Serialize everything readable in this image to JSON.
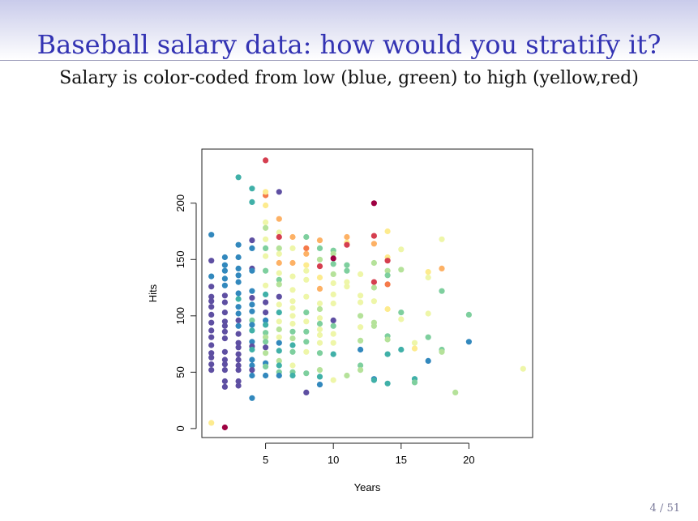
{
  "slide": {
    "title": "Baseball salary data: how would you stratify it?",
    "subtitle": "Salary is color-coded from low (blue, green) to high (yellow,red)",
    "page_number": "4 / 51"
  },
  "chart_data": {
    "type": "scatter",
    "xlabel": "Years",
    "ylabel": "Hits",
    "xlim": [
      0.3,
      24.7
    ],
    "ylim": [
      -8,
      248
    ],
    "xticks": [
      5,
      10,
      15,
      20
    ],
    "yticks": [
      0,
      50,
      100,
      150,
      200
    ],
    "grid": false,
    "colors": {
      "purple": "#5e4fa2",
      "blue": "#3288bd",
      "teal": "#40b0a8",
      "green": "#7ecf9e",
      "lightgreen": "#b5e29a",
      "lightyellow": "#eef6a8",
      "yellow": "#fdeb8e",
      "orange": "#fdb165",
      "darkorange": "#f57a4a",
      "red": "#d53e4f",
      "darkred": "#9e0142"
    },
    "points": [
      [
        1,
        172,
        "blue"
      ],
      [
        1,
        149,
        "purple"
      ],
      [
        1,
        135,
        "blue"
      ],
      [
        1,
        126,
        "purple"
      ],
      [
        1,
        117,
        "purple"
      ],
      [
        1,
        113,
        "purple"
      ],
      [
        1,
        108,
        "purple"
      ],
      [
        1,
        101,
        "purple"
      ],
      [
        1,
        94,
        "purple"
      ],
      [
        1,
        87,
        "purple"
      ],
      [
        1,
        81,
        "purple"
      ],
      [
        1,
        74,
        "purple"
      ],
      [
        1,
        67,
        "purple"
      ],
      [
        1,
        63,
        "purple"
      ],
      [
        1,
        57,
        "purple"
      ],
      [
        1,
        52,
        "purple"
      ],
      [
        1,
        5,
        "yellow"
      ],
      [
        2,
        152,
        "blue"
      ],
      [
        2,
        145,
        "blue"
      ],
      [
        2,
        140,
        "blue"
      ],
      [
        2,
        133,
        "blue"
      ],
      [
        2,
        127,
        "blue"
      ],
      [
        2,
        118,
        "purple"
      ],
      [
        2,
        112,
        "purple"
      ],
      [
        2,
        103,
        "purple"
      ],
      [
        2,
        95,
        "purple"
      ],
      [
        2,
        91,
        "purple"
      ],
      [
        2,
        86,
        "purple"
      ],
      [
        2,
        80,
        "purple"
      ],
      [
        2,
        68,
        "purple"
      ],
      [
        2,
        61,
        "purple"
      ],
      [
        2,
        57,
        "purple"
      ],
      [
        2,
        52,
        "purple"
      ],
      [
        2,
        42,
        "purple"
      ],
      [
        2,
        37,
        "purple"
      ],
      [
        2,
        1,
        "darkred"
      ],
      [
        3,
        223,
        "teal"
      ],
      [
        3,
        163,
        "blue"
      ],
      [
        3,
        152,
        "blue"
      ],
      [
        3,
        142,
        "blue"
      ],
      [
        3,
        136,
        "blue"
      ],
      [
        3,
        130,
        "blue"
      ],
      [
        3,
        120,
        "blue"
      ],
      [
        3,
        115,
        "teal"
      ],
      [
        3,
        108,
        "blue"
      ],
      [
        3,
        102,
        "blue"
      ],
      [
        3,
        96,
        "purple"
      ],
      [
        3,
        91,
        "blue"
      ],
      [
        3,
        84,
        "purple"
      ],
      [
        3,
        76,
        "purple"
      ],
      [
        3,
        72,
        "purple"
      ],
      [
        3,
        66,
        "purple"
      ],
      [
        3,
        61,
        "purple"
      ],
      [
        3,
        56,
        "purple"
      ],
      [
        3,
        52,
        "purple"
      ],
      [
        3,
        42,
        "purple"
      ],
      [
        3,
        38,
        "purple"
      ],
      [
        4,
        213,
        "teal"
      ],
      [
        4,
        201,
        "teal"
      ],
      [
        4,
        167,
        "purple"
      ],
      [
        4,
        160,
        "blue"
      ],
      [
        4,
        142,
        "purple"
      ],
      [
        4,
        140,
        "blue"
      ],
      [
        4,
        122,
        "blue"
      ],
      [
        4,
        116,
        "purple"
      ],
      [
        4,
        110,
        "blue"
      ],
      [
        4,
        104,
        "blue"
      ],
      [
        4,
        96,
        "green"
      ],
      [
        4,
        92,
        "blue"
      ],
      [
        4,
        87,
        "teal"
      ],
      [
        4,
        77,
        "blue"
      ],
      [
        4,
        73,
        "purple"
      ],
      [
        4,
        70,
        "teal"
      ],
      [
        4,
        61,
        "blue"
      ],
      [
        4,
        56,
        "blue"
      ],
      [
        4,
        52,
        "purple"
      ],
      [
        4,
        47,
        "blue"
      ],
      [
        4,
        27,
        "blue"
      ],
      [
        5,
        238,
        "red"
      ],
      [
        5,
        207,
        "darkorange"
      ],
      [
        5,
        210,
        "yellow"
      ],
      [
        5,
        198,
        "yellow"
      ],
      [
        5,
        183,
        "lightyellow"
      ],
      [
        5,
        178,
        "lightgreen"
      ],
      [
        5,
        168,
        "lightyellow"
      ],
      [
        5,
        160,
        "green"
      ],
      [
        5,
        153,
        "lightyellow"
      ],
      [
        5,
        140,
        "green"
      ],
      [
        5,
        127,
        "lightyellow"
      ],
      [
        5,
        119,
        "teal"
      ],
      [
        5,
        112,
        "purple"
      ],
      [
        5,
        103,
        "purple"
      ],
      [
        5,
        96,
        "blue"
      ],
      [
        5,
        92,
        "teal"
      ],
      [
        5,
        85,
        "green"
      ],
      [
        5,
        81,
        "lightgreen"
      ],
      [
        5,
        77,
        "green"
      ],
      [
        5,
        72,
        "purple"
      ],
      [
        5,
        67,
        "lightgreen"
      ],
      [
        5,
        58,
        "blue"
      ],
      [
        5,
        55,
        "green"
      ],
      [
        5,
        47,
        "blue"
      ],
      [
        6,
        210,
        "purple"
      ],
      [
        6,
        186,
        "orange"
      ],
      [
        6,
        174,
        "lightyellow"
      ],
      [
        6,
        170,
        "red"
      ],
      [
        6,
        160,
        "lightgreen"
      ],
      [
        6,
        155,
        "lightyellow"
      ],
      [
        6,
        147,
        "orange"
      ],
      [
        6,
        138,
        "lightyellow"
      ],
      [
        6,
        132,
        "green"
      ],
      [
        6,
        128,
        "lightgreen"
      ],
      [
        6,
        117,
        "purple"
      ],
      [
        6,
        110,
        "lightyellow"
      ],
      [
        6,
        103,
        "teal"
      ],
      [
        6,
        95,
        "lightyellow"
      ],
      [
        6,
        88,
        "lightgreen"
      ],
      [
        6,
        81,
        "lightyellow"
      ],
      [
        6,
        76,
        "blue"
      ],
      [
        6,
        69,
        "teal"
      ],
      [
        6,
        60,
        "lightgreen"
      ],
      [
        6,
        56,
        "teal"
      ],
      [
        6,
        50,
        "green"
      ],
      [
        6,
        47,
        "blue"
      ],
      [
        7,
        170,
        "orange"
      ],
      [
        7,
        160,
        "lightyellow"
      ],
      [
        7,
        147,
        "orange"
      ],
      [
        7,
        135,
        "lightyellow"
      ],
      [
        7,
        123,
        "lightyellow"
      ],
      [
        7,
        113,
        "lightyellow"
      ],
      [
        7,
        107,
        "lightyellow"
      ],
      [
        7,
        100,
        "lightyellow"
      ],
      [
        7,
        93,
        "lightyellow"
      ],
      [
        7,
        86,
        "green"
      ],
      [
        7,
        80,
        "lightgreen"
      ],
      [
        7,
        74,
        "teal"
      ],
      [
        7,
        68,
        "green"
      ],
      [
        7,
        56,
        "lightyellow"
      ],
      [
        7,
        50,
        "green"
      ],
      [
        7,
        47,
        "teal"
      ],
      [
        8,
        170,
        "green"
      ],
      [
        8,
        160,
        "darkorange"
      ],
      [
        8,
        155,
        "orange"
      ],
      [
        8,
        145,
        "yellow"
      ],
      [
        8,
        140,
        "lightyellow"
      ],
      [
        8,
        132,
        "lightyellow"
      ],
      [
        8,
        117,
        "lightyellow"
      ],
      [
        8,
        103,
        "green"
      ],
      [
        8,
        95,
        "lightyellow"
      ],
      [
        8,
        86,
        "green"
      ],
      [
        8,
        77,
        "green"
      ],
      [
        8,
        68,
        "lightyellow"
      ],
      [
        8,
        49,
        "green"
      ],
      [
        8,
        32,
        "purple"
      ],
      [
        9,
        167,
        "orange"
      ],
      [
        9,
        160,
        "green"
      ],
      [
        9,
        150,
        "lightgreen"
      ],
      [
        9,
        144,
        "red"
      ],
      [
        9,
        134,
        "yellow"
      ],
      [
        9,
        124,
        "orange"
      ],
      [
        9,
        111,
        "lightyellow"
      ],
      [
        9,
        106,
        "lightgreen"
      ],
      [
        9,
        98,
        "lightyellow"
      ],
      [
        9,
        93,
        "green"
      ],
      [
        9,
        88,
        "lightyellow"
      ],
      [
        9,
        83,
        "lightyellow"
      ],
      [
        9,
        76,
        "lightyellow"
      ],
      [
        9,
        67,
        "green"
      ],
      [
        9,
        52,
        "lightgreen"
      ],
      [
        9,
        46,
        "teal"
      ],
      [
        9,
        39,
        "blue"
      ],
      [
        10,
        158,
        "green"
      ],
      [
        10,
        155,
        "lightgreen"
      ],
      [
        10,
        151,
        "darkred"
      ],
      [
        10,
        146,
        "green"
      ],
      [
        10,
        137,
        "lightgreen"
      ],
      [
        10,
        129,
        "lightyellow"
      ],
      [
        10,
        119,
        "lightyellow"
      ],
      [
        10,
        111,
        "lightyellow"
      ],
      [
        10,
        96,
        "purple"
      ],
      [
        10,
        91,
        "green"
      ],
      [
        10,
        84,
        "lightyellow"
      ],
      [
        10,
        76,
        "lightyellow"
      ],
      [
        10,
        66,
        "teal"
      ],
      [
        10,
        43,
        "lightyellow"
      ],
      [
        11,
        170,
        "orange"
      ],
      [
        11,
        165,
        "yellow"
      ],
      [
        11,
        163,
        "red"
      ],
      [
        11,
        145,
        "green"
      ],
      [
        11,
        140,
        "green"
      ],
      [
        11,
        130,
        "lightyellow"
      ],
      [
        11,
        126,
        "lightyellow"
      ],
      [
        11,
        47,
        "lightgreen"
      ],
      [
        12,
        137,
        "lightyellow"
      ],
      [
        12,
        118,
        "lightyellow"
      ],
      [
        12,
        112,
        "lightyellow"
      ],
      [
        12,
        100,
        "lightgreen"
      ],
      [
        12,
        90,
        "lightyellow"
      ],
      [
        12,
        78,
        "lightgreen"
      ],
      [
        12,
        70,
        "blue"
      ],
      [
        12,
        56,
        "green"
      ],
      [
        12,
        52,
        "lightgreen"
      ],
      [
        13,
        200,
        "darkred"
      ],
      [
        13,
        171,
        "red"
      ],
      [
        13,
        164,
        "orange"
      ],
      [
        13,
        147,
        "lightgreen"
      ],
      [
        13,
        130,
        "red"
      ],
      [
        13,
        125,
        "lightgreen"
      ],
      [
        13,
        113,
        "lightyellow"
      ],
      [
        13,
        94,
        "lightgreen"
      ],
      [
        13,
        91,
        "lightgreen"
      ],
      [
        13,
        44,
        "blue"
      ],
      [
        13,
        43,
        "teal"
      ],
      [
        14,
        175,
        "yellow"
      ],
      [
        14,
        152,
        "yellow"
      ],
      [
        14,
        149,
        "red"
      ],
      [
        14,
        140,
        "lightgreen"
      ],
      [
        14,
        136,
        "green"
      ],
      [
        14,
        128,
        "darkorange"
      ],
      [
        14,
        106,
        "yellow"
      ],
      [
        14,
        82,
        "green"
      ],
      [
        14,
        79,
        "lightgreen"
      ],
      [
        14,
        66,
        "teal"
      ],
      [
        14,
        40,
        "teal"
      ],
      [
        15,
        159,
        "lightyellow"
      ],
      [
        15,
        141,
        "lightgreen"
      ],
      [
        15,
        103,
        "green"
      ],
      [
        15,
        97,
        "lightyellow"
      ],
      [
        15,
        70,
        "teal"
      ],
      [
        16,
        76,
        "lightyellow"
      ],
      [
        16,
        71,
        "yellow"
      ],
      [
        16,
        44,
        "teal"
      ],
      [
        16,
        41,
        "green"
      ],
      [
        17,
        139,
        "yellow"
      ],
      [
        17,
        134,
        "lightyellow"
      ],
      [
        17,
        102,
        "lightyellow"
      ],
      [
        17,
        81,
        "green"
      ],
      [
        17,
        60,
        "blue"
      ],
      [
        18,
        168,
        "lightyellow"
      ],
      [
        18,
        142,
        "orange"
      ],
      [
        18,
        122,
        "green"
      ],
      [
        18,
        70,
        "green"
      ],
      [
        18,
        68,
        "lightgreen"
      ],
      [
        19,
        32,
        "lightgreen"
      ],
      [
        20,
        101,
        "green"
      ],
      [
        20,
        77,
        "blue"
      ],
      [
        24,
        53,
        "lightyellow"
      ]
    ]
  }
}
